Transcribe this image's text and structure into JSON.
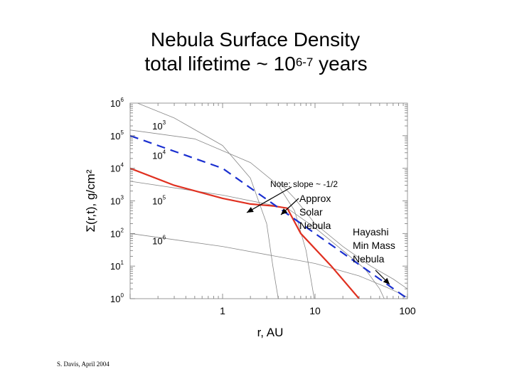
{
  "title_line1": "Nebula Surface Density",
  "title_line2_prefix": "total lifetime ~ 10",
  "title_line2_exponent": "6-7",
  "title_line2_suffix": " years",
  "credit": "S. Davis, April 2004",
  "chart_data": {
    "type": "line",
    "xlabel": "r, AU",
    "ylabel": "Σ(r,t), g/cm²",
    "x_scale": "log",
    "y_scale": "log",
    "xlim": [
      0.1,
      100
    ],
    "ylim": [
      1,
      1000000
    ],
    "x_ticks": [
      {
        "value": 1,
        "label": "1"
      },
      {
        "value": 10,
        "label": "10"
      },
      {
        "value": 100,
        "label": "100"
      }
    ],
    "y_ticks": [
      {
        "value": 1,
        "base": "10",
        "exp": "0"
      },
      {
        "value": 10,
        "base": "10",
        "exp": "1"
      },
      {
        "value": 100,
        "base": "10",
        "exp": "2"
      },
      {
        "value": 1000,
        "base": "10",
        "exp": "3"
      },
      {
        "value": 10000,
        "base": "10",
        "exp": "4"
      },
      {
        "value": 100000,
        "base": "10",
        "exp": "5"
      },
      {
        "value": 1000000,
        "base": "10",
        "exp": "6"
      }
    ],
    "grid": false,
    "series": [
      {
        "role": "model",
        "color": "#888888",
        "style": "thin",
        "points": [
          [
            0.12,
            1000000
          ],
          [
            0.3,
            350000
          ],
          [
            1,
            50000
          ],
          [
            2,
            5000
          ],
          [
            3,
            200
          ],
          [
            3.5,
            10
          ],
          [
            4,
            1
          ]
        ]
      },
      {
        "role": "model",
        "color": "#888888",
        "style": "thin",
        "points": [
          [
            0.1,
            150000
          ],
          [
            0.5,
            80000
          ],
          [
            2,
            15000
          ],
          [
            4,
            3000
          ],
          [
            6,
            500
          ],
          [
            8,
            30
          ],
          [
            9.8,
            1
          ]
        ]
      },
      {
        "role": "model",
        "color": "#888888",
        "style": "thin",
        "points": [
          [
            0.1,
            4000
          ],
          [
            1,
            1500
          ],
          [
            5,
            600
          ],
          [
            10,
            150
          ],
          [
            20,
            30
          ],
          [
            35,
            8
          ],
          [
            50,
            2
          ],
          [
            56,
            1
          ]
        ]
      },
      {
        "role": "model",
        "color": "#888888",
        "style": "thin",
        "points": [
          [
            0.1,
            100
          ],
          [
            1,
            40
          ],
          [
            10,
            12
          ],
          [
            30,
            5
          ],
          [
            60,
            2.2
          ],
          [
            90,
            1.3
          ],
          [
            100,
            1.1
          ]
        ]
      },
      {
        "role": "model",
        "color": "#888888",
        "style": "thin",
        "points": [
          [
            4,
            4000
          ],
          [
            6,
            1200
          ],
          [
            10,
            200
          ],
          [
            20,
            40
          ],
          [
            40,
            10
          ],
          [
            70,
            4
          ],
          [
            100,
            2
          ]
        ]
      },
      {
        "role": "approx-solar-nebula",
        "color": "#e03020",
        "style": "solid",
        "points": [
          [
            0.1,
            10000
          ],
          [
            0.3,
            3000
          ],
          [
            1,
            1200
          ],
          [
            2,
            800
          ],
          [
            3.5,
            700
          ],
          [
            5,
            600
          ],
          [
            7,
            100
          ],
          [
            15,
            10
          ],
          [
            30,
            1
          ]
        ]
      },
      {
        "role": "hayashi-min-mass-nebula",
        "color": "#1a2fd0",
        "style": "dashed",
        "points": [
          [
            0.1,
            100000
          ],
          [
            1,
            10000
          ],
          [
            10,
            100
          ],
          [
            100,
            1
          ]
        ]
      }
    ],
    "contour_labels": [
      {
        "base": "10",
        "exp": "3",
        "x": 0.2,
        "y": 200000
      },
      {
        "base": "10",
        "exp": "4",
        "x": 0.2,
        "y": 25000
      },
      {
        "base": "10",
        "exp": "5",
        "x": 0.2,
        "y": 1000
      },
      {
        "base": "10",
        "exp": "6",
        "x": 0.2,
        "y": 60
      }
    ],
    "annotations": {
      "note": "Note: slope ~ -1/2",
      "approx_lines": [
        "Approx",
        "Solar",
        "Nebula"
      ],
      "hayashi_lines": [
        "Hayashi",
        "Min Mass",
        "Nebula"
      ]
    }
  }
}
